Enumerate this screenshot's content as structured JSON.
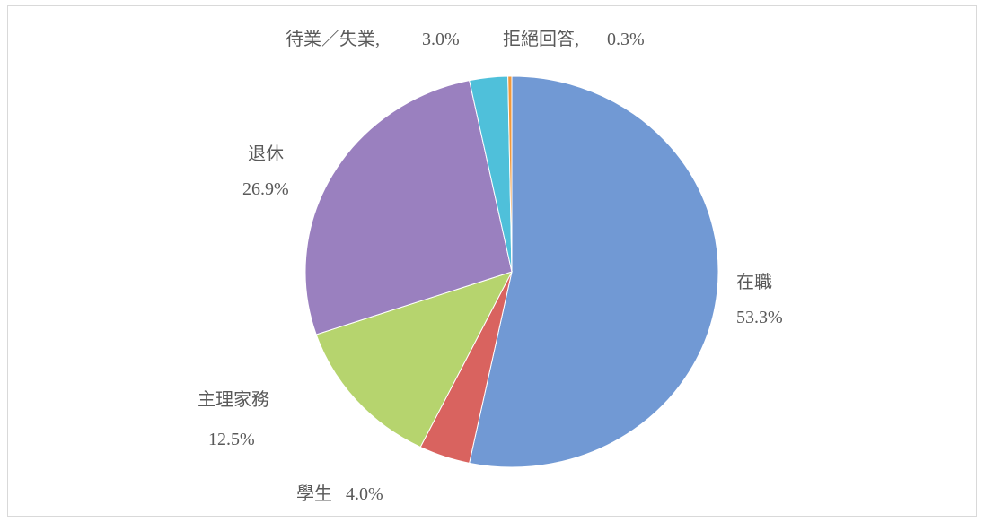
{
  "chart_data": {
    "type": "pie",
    "categories": [
      "在職",
      "學生",
      "主理家務",
      "退休",
      "待業／失業",
      "拒絕回答"
    ],
    "values": [
      53.3,
      4.0,
      12.5,
      26.9,
      3.0,
      0.3
    ],
    "value_labels": [
      "53.3%",
      "4.0%",
      "12.5%",
      "26.9%",
      "3.0%",
      "0.3%"
    ],
    "colors": [
      "#7199d4",
      "#d9635f",
      "#b6d46e",
      "#9a80bf",
      "#4fc0da",
      "#f0993c"
    ]
  }
}
